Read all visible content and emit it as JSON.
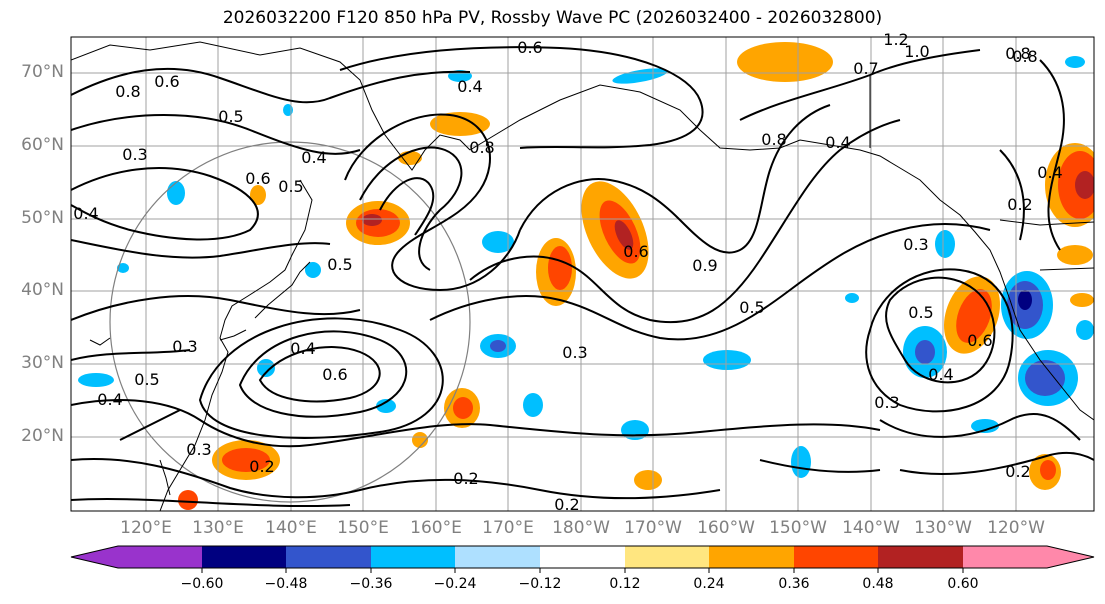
{
  "title": "2026032200 F120 850 hPa PV, Rossby Wave PC (2026032400 - 2026032800)",
  "latitude_labels": [
    "70°N",
    "60°N",
    "50°N",
    "40°N",
    "30°N",
    "20°N"
  ],
  "longitude_labels": [
    "120°E",
    "130°E",
    "140°E",
    "150°E",
    "160°E",
    "170°E",
    "180°W",
    "170°W",
    "160°W",
    "150°W",
    "140°W",
    "130°W",
    "120°W"
  ],
  "colorbar": {
    "ticks": [
      "−0.60",
      "−0.48",
      "−0.36",
      "−0.24",
      "−0.12",
      "0.12",
      "0.24",
      "0.36",
      "0.48",
      "0.60"
    ],
    "colors": [
      "#9933cc",
      "#000080",
      "#3355cc",
      "#00bfff",
      "#aee0ff",
      "#ffffff",
      "#ffe680",
      "#ffa500",
      "#ff4500",
      "#b22222",
      "#ff88aa"
    ]
  },
  "contour_labels": [
    "0.6",
    "1.2",
    "1.0",
    "0.7",
    "0.8",
    "0.4",
    "0.5",
    "0.8",
    "0.6",
    "0.4",
    "0.8",
    "0.8",
    "0.4",
    "0.5",
    "0.4",
    "0.6",
    "0.9",
    "0.3",
    "0.4",
    "0.6",
    "0.5",
    "0.4",
    "0.3",
    "0.6",
    "0.5",
    "0.2",
    "0.3",
    "0.2",
    "0.2",
    "0.5",
    "0.4",
    "0.3",
    "0.8",
    "0.3",
    "0.5",
    "0.6",
    "0.4",
    "0.3",
    "0.2",
    "0.2"
  ],
  "colors": {
    "contour": "#000000",
    "grid": "#a0a0a0",
    "coast": "#000000",
    "label_gray": "#808080"
  }
}
